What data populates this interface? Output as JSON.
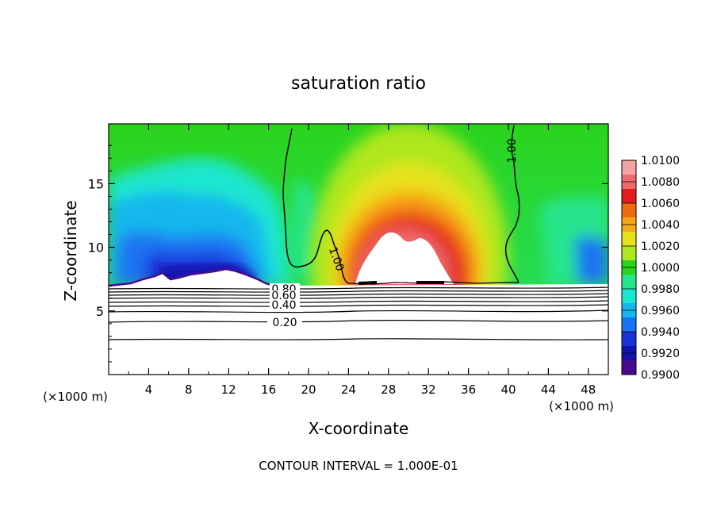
{
  "chart_data": {
    "type": "heatmap",
    "title": "saturation ratio",
    "xlabel": "X-coordinate",
    "ylabel": "Z-coordinate",
    "x_unit_left": "(×1000 m)",
    "x_unit_right": "(×1000 m)",
    "xlim": [
      0,
      50
    ],
    "ylim": [
      0,
      19.7
    ],
    "xticks": [
      4,
      8,
      12,
      16,
      20,
      24,
      28,
      32,
      36,
      40,
      44,
      48
    ],
    "yticks": [
      5,
      10,
      15
    ],
    "footer": "CONTOUR INTERVAL = 1.000E-01",
    "colorbar": {
      "levels": [
        "1.0100",
        "1.0080",
        "1.0060",
        "1.0040",
        "1.0020",
        "1.0000",
        "0.9980",
        "0.9960",
        "0.9940",
        "0.9920",
        "0.9900"
      ],
      "colors": [
        "#f3a3a3",
        "#f06a6a",
        "#e21b1b",
        "#f06a10",
        "#f7a818",
        "#e7e21c",
        "#aee71d",
        "#2ad41c",
        "#25e58b",
        "#1ae7cf",
        "#14b7ee",
        "#1a73f2",
        "#1a33d8",
        "#1212b0",
        "#4a0a8c"
      ]
    },
    "contour_labels": [
      "1.00",
      "1.00",
      "0.80",
      "0.60",
      "0.40",
      "0.20"
    ],
    "contour_levels": [
      1.0,
      0.8,
      0.6,
      0.4,
      0.2
    ]
  }
}
